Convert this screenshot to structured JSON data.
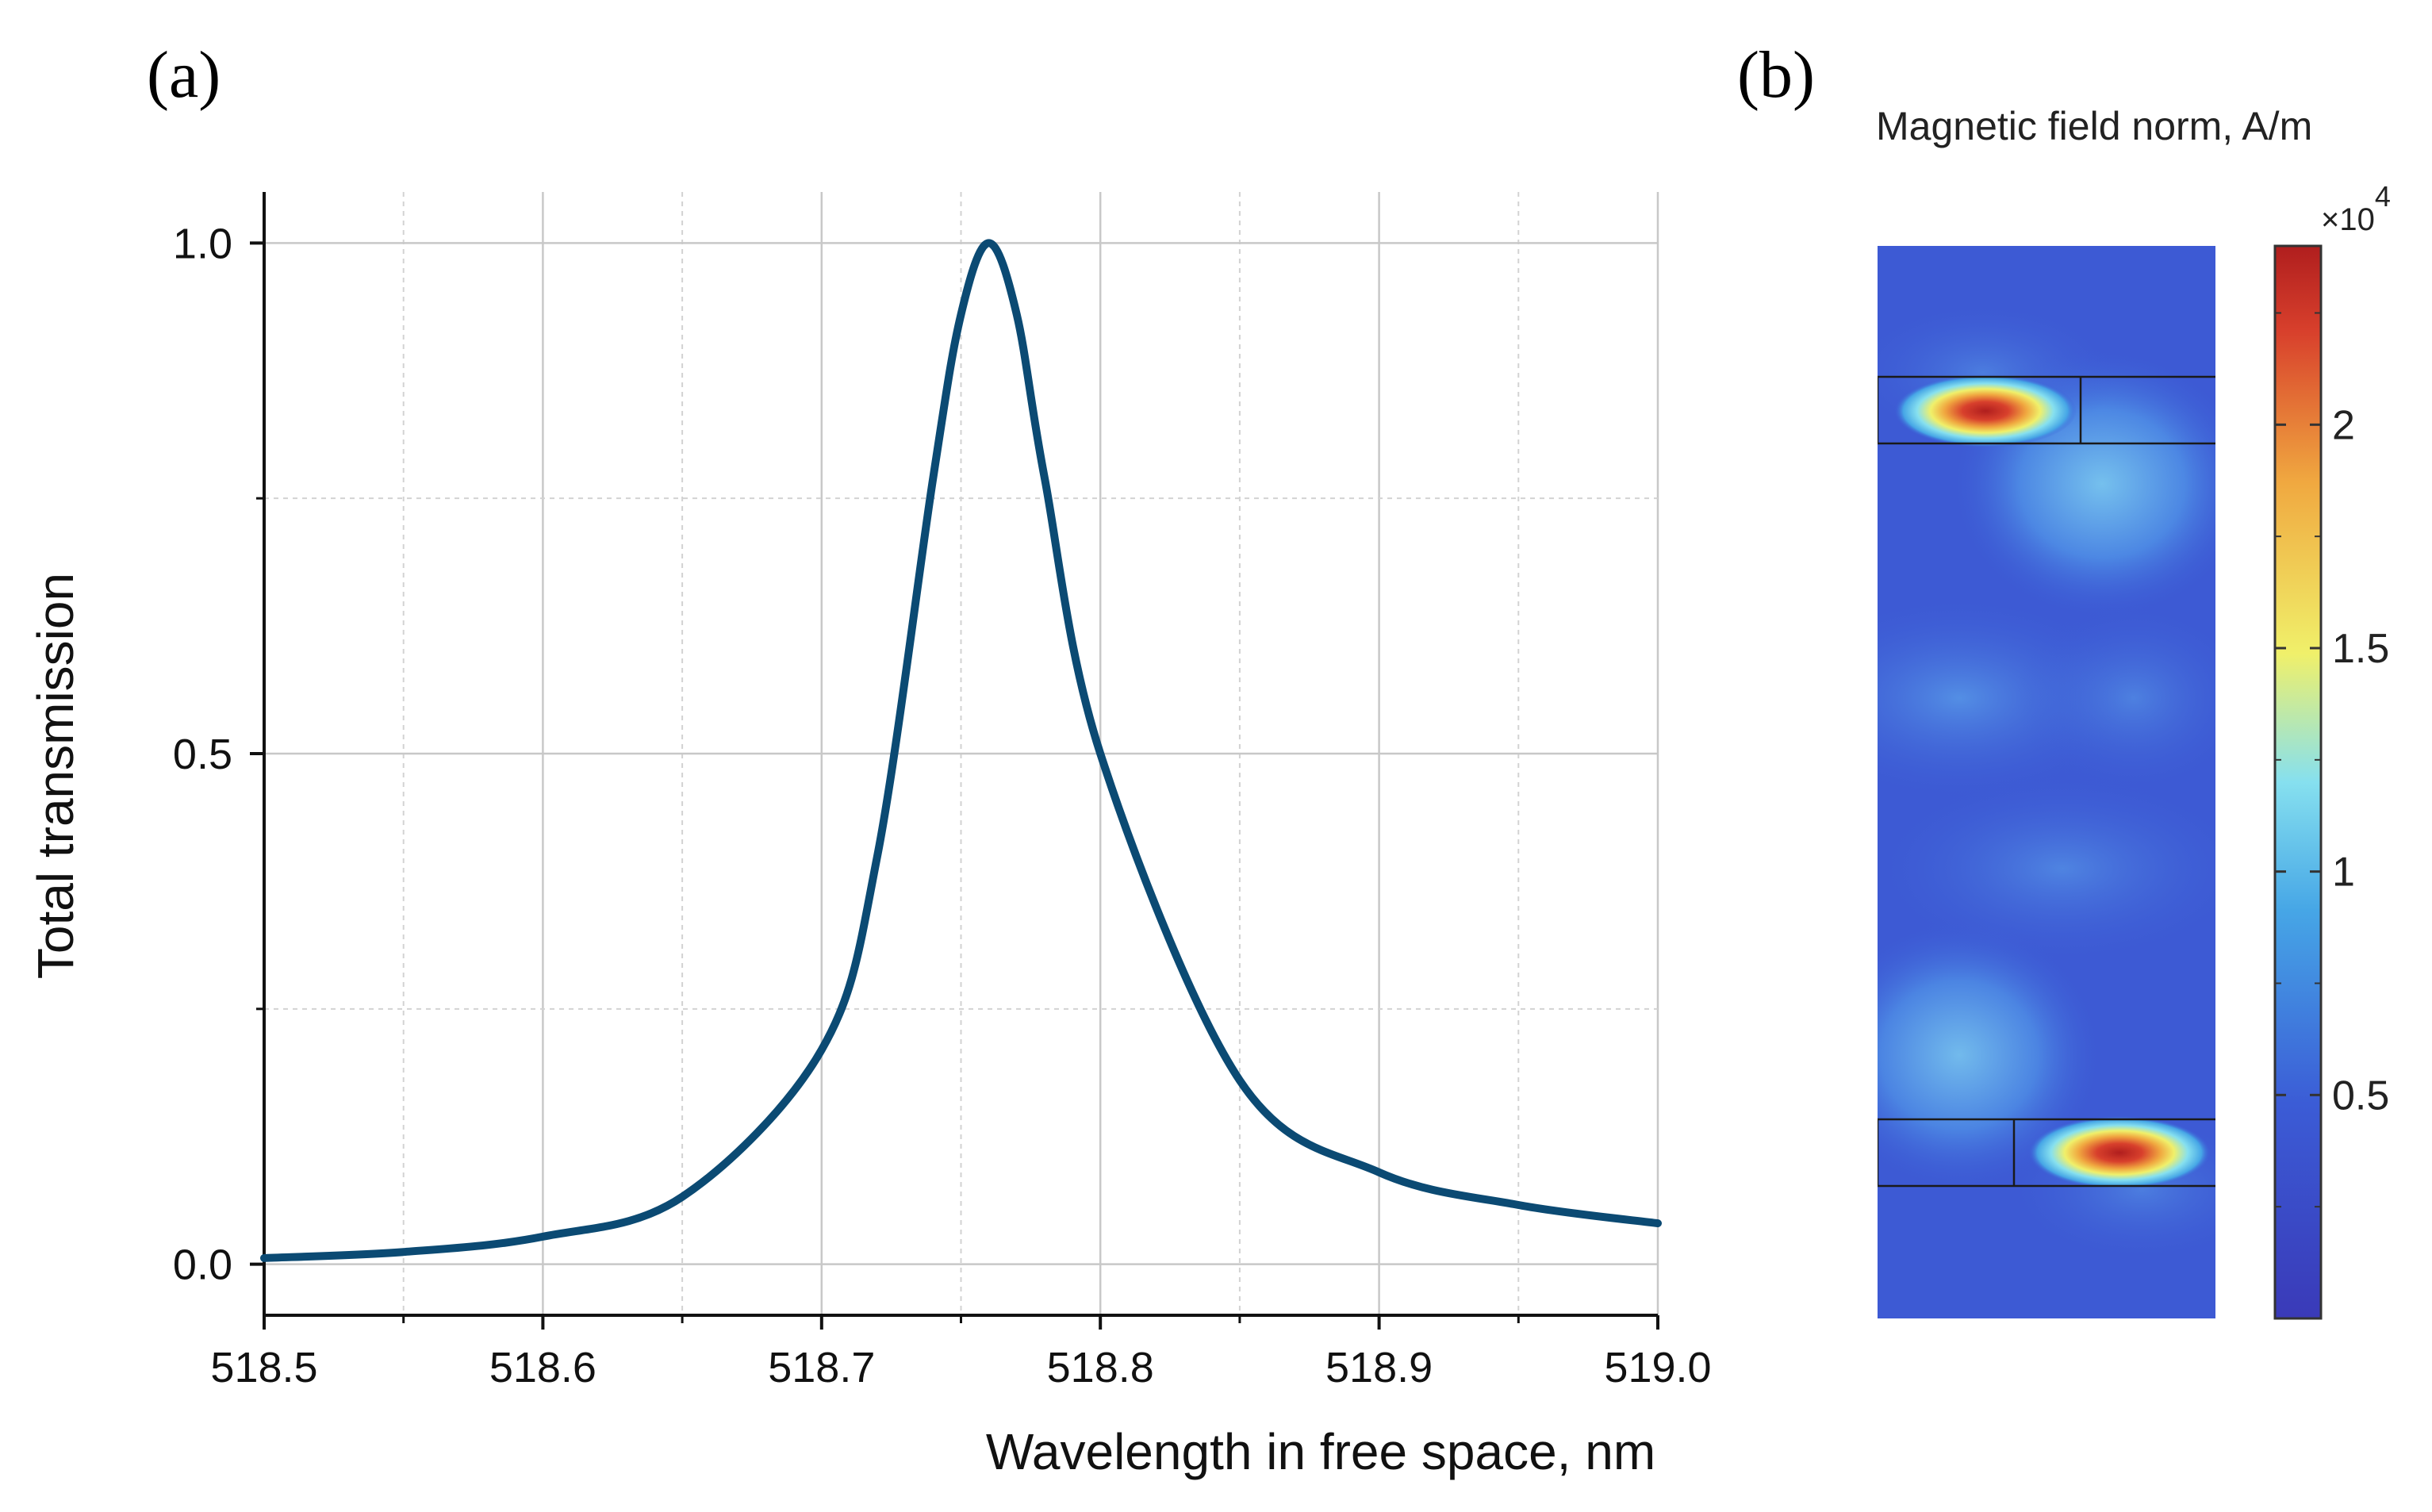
{
  "panels": {
    "a_label": "(a)",
    "b_label": "(b)"
  },
  "chart_data": {
    "type": "line",
    "title": "",
    "xlabel": "Wavelength in free space, nm",
    "ylabel": "Total transmission",
    "xlim": [
      518.5,
      519.0
    ],
    "ylim": [
      -0.05,
      1.05
    ],
    "x_ticks": [
      518.5,
      518.6,
      518.7,
      518.8,
      518.9,
      519.0
    ],
    "x_tick_labels": [
      "518.5",
      "518.6",
      "518.7",
      "518.8",
      "518.9",
      "519.0"
    ],
    "y_ticks": [
      0.0,
      0.5,
      1.0
    ],
    "y_tick_labels": [
      "0.0",
      "0.5",
      "1.0"
    ],
    "grid": true,
    "series": [
      {
        "name": "Total transmission",
        "color": "#0b4a73",
        "x": [
          518.5,
          518.55,
          518.6,
          518.65,
          518.7,
          518.72,
          518.74,
          518.75,
          518.76,
          518.77,
          518.78,
          518.8,
          518.85,
          518.9,
          518.95,
          519.0
        ],
        "y": [
          0.006,
          0.012,
          0.027,
          0.066,
          0.21,
          0.4,
          0.77,
          0.93,
          1.0,
          0.93,
          0.77,
          0.5,
          0.18,
          0.09,
          0.058,
          0.04
        ]
      }
    ]
  },
  "field_map": {
    "title": "Magnetic field norm, A/m",
    "colorbar_multiplier": "×10",
    "colorbar_exponent": "4",
    "colorbar_ticks": [
      "0.5",
      "1",
      "1.5",
      "2"
    ],
    "colorbar_tick_values": [
      0.5,
      1.0,
      1.5,
      2.0
    ],
    "colorbar_range": [
      0.0,
      2.4
    ],
    "colormap": [
      "#3a3ab8",
      "#3b5cd6",
      "#46a6e6",
      "#86e0ef",
      "#f0f06a",
      "#f0a840",
      "#d8402c",
      "#b01e1e"
    ]
  }
}
